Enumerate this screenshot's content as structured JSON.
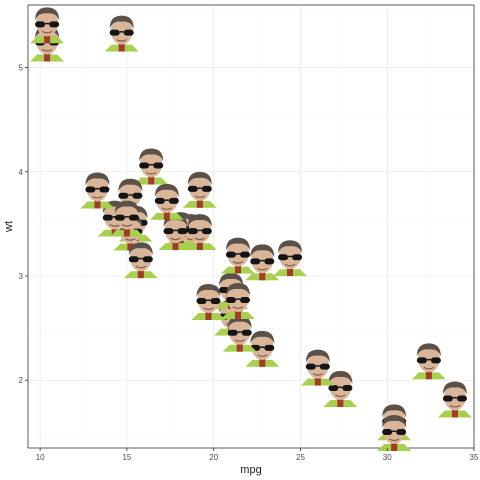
{
  "chart_data": {
    "type": "scatter",
    "title": "",
    "xlabel": "mpg",
    "ylabel": "wt",
    "xlim": [
      9.3,
      35.0
    ],
    "ylim": [
      1.35,
      5.6
    ],
    "x_ticks": [
      10,
      15,
      20,
      25,
      30,
      35
    ],
    "x_tick_labels": [
      "10",
      "15",
      "20",
      "25",
      "30",
      "35"
    ],
    "y_ticks": [
      2,
      3,
      4,
      5
    ],
    "y_tick_labels": [
      "2",
      "3",
      "4",
      "5"
    ],
    "grid": true,
    "marker": "face-photo-icon",
    "x": [
      21.0,
      21.0,
      22.8,
      21.4,
      18.7,
      18.1,
      14.3,
      24.4,
      22.8,
      19.2,
      17.8,
      16.4,
      17.3,
      15.2,
      10.4,
      10.4,
      14.7,
      32.4,
      30.4,
      33.9,
      21.5,
      15.5,
      15.2,
      13.3,
      19.2,
      27.3,
      26.0,
      30.4,
      15.8,
      19.7,
      15.0,
      21.4
    ],
    "y": [
      2.62,
      2.875,
      2.32,
      3.215,
      3.44,
      3.46,
      3.57,
      3.19,
      3.15,
      3.44,
      3.44,
      4.07,
      3.73,
      3.78,
      5.25,
      5.424,
      5.345,
      2.2,
      1.615,
      1.835,
      2.465,
      3.52,
      3.435,
      3.84,
      3.845,
      1.935,
      2.14,
      1.513,
      3.17,
      2.77,
      3.57,
      2.78
    ]
  },
  "colors": {
    "panel_border": "#333333",
    "grid_major": "#ebebeb",
    "grid_minor": "#f5f5f5",
    "tick_text": "#4d4d4d",
    "axis_title": "#1a1a1a"
  }
}
